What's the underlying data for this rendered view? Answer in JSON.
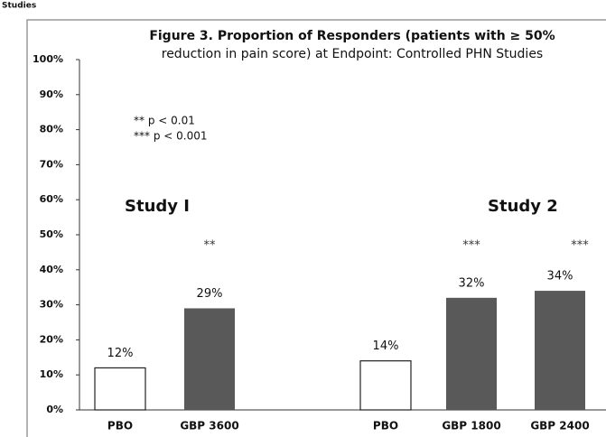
{
  "page_caption": "Studies",
  "chart_data": {
    "type": "bar",
    "title": [
      "Figure 3. Proportion of Responders (patients with ≥ 50%",
      "reduction in pain score) at Endpoint: Controlled PHN Studies"
    ],
    "categories": [
      "PBO",
      "GBP 3600",
      "PBO",
      "GBP 1800",
      "GBP 2400"
    ],
    "values": [
      12,
      29,
      14,
      32,
      34
    ],
    "value_labels": [
      "12%",
      "29%",
      "14%",
      "32%",
      "34%"
    ],
    "colors": [
      "#ffffff",
      "#595959",
      "#ffffff",
      "#595959",
      "#595959"
    ],
    "significance": [
      null,
      "**",
      null,
      "***",
      "***"
    ],
    "study_labels": [
      "Study  I",
      "Study 2"
    ],
    "notes": [
      "** p < 0.01",
      "*** p < 0.001"
    ],
    "ylim": [
      0,
      100
    ],
    "yticks": [
      {
        "value": 0,
        "label": "0%"
      },
      {
        "value": 10,
        "label": "10%"
      },
      {
        "value": 20,
        "label": "20%"
      },
      {
        "value": 30,
        "label": "30%"
      },
      {
        "value": 40,
        "label": "40%"
      },
      {
        "value": 50,
        "label": "50%"
      },
      {
        "value": 60,
        "label": "60%"
      },
      {
        "value": 70,
        "label": "70%"
      },
      {
        "value": 80,
        "label": "80%"
      },
      {
        "value": 90,
        "label": "90%"
      },
      {
        "value": 100,
        "label": "100%"
      }
    ],
    "grid": false
  }
}
